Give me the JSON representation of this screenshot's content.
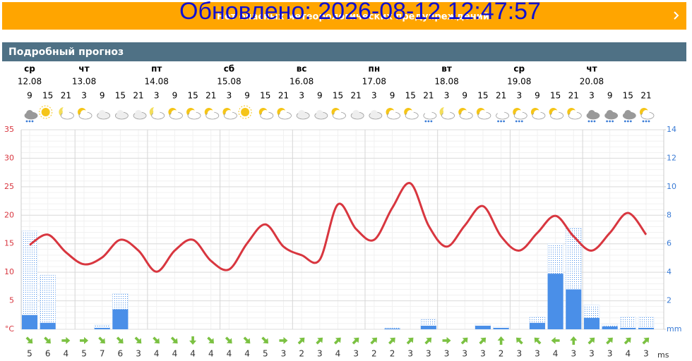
{
  "banner": {
    "updated": "Обновлено: 2026-08-12 12:47:57",
    "notice": "Нет опасных метеорологических предупреждений"
  },
  "section_title": "Подробный прогноз",
  "chart_data": {
    "type": "weather",
    "days": [
      {
        "name": "ср",
        "date": "12.08"
      },
      {
        "name": "чт",
        "date": "13.08"
      },
      {
        "name": "пт",
        "date": "14.08"
      },
      {
        "name": "сб",
        "date": "15.08"
      },
      {
        "name": "вс",
        "date": "16.08"
      },
      {
        "name": "пн",
        "date": "17.08"
      },
      {
        "name": "вт",
        "date": "18.08"
      },
      {
        "name": "ср",
        "date": "19.08"
      },
      {
        "name": "чт",
        "date": "20.08"
      }
    ],
    "categories": [
      9,
      15,
      21,
      3,
      9,
      15,
      21,
      3,
      9,
      15,
      21,
      3,
      9,
      15,
      21,
      3,
      9,
      15,
      21,
      3,
      9,
      15,
      21,
      3,
      9,
      15,
      21,
      3,
      9,
      15,
      21,
      3,
      9,
      15,
      21
    ],
    "series": [
      {
        "name": "temperature",
        "color": "#d8363f",
        "values": [
          14.8,
          16.6,
          13.5,
          11.4,
          12.6,
          15.7,
          13.8,
          10.1,
          13.8,
          15.7,
          12.0,
          10.5,
          15.1,
          18.4,
          14.5,
          13.0,
          12.2,
          21.9,
          17.6,
          15.7,
          21.3,
          25.6,
          18.2,
          14.5,
          18.2,
          21.6,
          16.3,
          13.8,
          16.9,
          19.9,
          16.3,
          13.8,
          16.9,
          20.4,
          16.6
        ]
      },
      {
        "name": "precipitation-max",
        "color": "#4a8fe8",
        "axis": "y2",
        "values": [
          6.9,
          3.8,
          0,
          0,
          0.3,
          2.5,
          0,
          0,
          0,
          0,
          0,
          0,
          0,
          0,
          0,
          0,
          0,
          0,
          0,
          0,
          0.1,
          0,
          0.7,
          0,
          0,
          0.35,
          0.2,
          0,
          0.85,
          6.0,
          7.1,
          1.7,
          0.35,
          0.85,
          0.85
        ]
      },
      {
        "name": "precipitation",
        "color": "#4a8fe8",
        "axis": "y2",
        "values": [
          1.0,
          0.45,
          0,
          0,
          0.1,
          1.4,
          0,
          0,
          0,
          0,
          0,
          0,
          0,
          0,
          0,
          0,
          0,
          0,
          0,
          0,
          0.05,
          0,
          0.25,
          0,
          0,
          0.25,
          0.1,
          0,
          0.45,
          3.9,
          2.8,
          0.8,
          0.2,
          0.1,
          0.1
        ]
      }
    ],
    "ylim": [
      0,
      35
    ],
    "yticks": [
      {
        "value": 0,
        "label": "°C"
      },
      5,
      10,
      15,
      20,
      25,
      30,
      35
    ],
    "y2lim": [
      0,
      14
    ],
    "y2ticks": [
      {
        "value": 0,
        "label": "mm"
      },
      2,
      4,
      6,
      8,
      10,
      12,
      14
    ],
    "wind": {
      "unit": "ms",
      "color": "#7bc142",
      "speed": [
        5,
        6,
        4,
        5,
        7,
        6,
        3,
        4,
        4,
        4,
        4,
        4,
        4,
        5,
        3,
        2,
        3,
        4,
        3,
        2,
        2,
        3,
        3,
        3,
        3,
        3,
        2,
        3,
        3,
        4,
        3,
        3,
        3,
        4,
        3
      ],
      "direction": [
        135,
        135,
        90,
        90,
        135,
        135,
        135,
        135,
        135,
        180,
        135,
        135,
        135,
        135,
        90,
        45,
        45,
        45,
        45,
        45,
        45,
        45,
        45,
        90,
        45,
        45,
        0,
        315,
        315,
        270,
        0,
        45,
        45,
        45,
        45
      ]
    }
  }
}
